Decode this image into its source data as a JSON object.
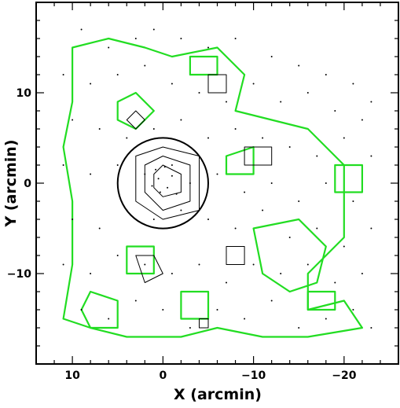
{
  "chart_data": {
    "type": "contour",
    "xlabel": "X (arcmin)",
    "ylabel": "Y (arcmin)",
    "xlim": [
      14,
      -26
    ],
    "ylim": [
      -20,
      20
    ],
    "x_ticks": [
      10,
      0,
      -10,
      -20
    ],
    "y_ticks": [
      10,
      0,
      -10
    ],
    "x_tick_labels": [
      "10",
      "0",
      "−10",
      "−20"
    ],
    "y_tick_labels": [
      "10",
      "0",
      "−10"
    ],
    "grid": false,
    "colors": {
      "green_contours": "#22dd22",
      "black_contours": "#000000",
      "points": "#000000"
    },
    "circle": {
      "center": [
        0,
        0
      ],
      "radius": 5
    },
    "green_contours": [
      [
        [
          -1,
          14
        ],
        [
          -6,
          15
        ],
        [
          -9,
          12
        ],
        [
          -8,
          8
        ],
        [
          -12,
          7
        ],
        [
          -16,
          6
        ],
        [
          -20,
          2
        ],
        [
          -20,
          -6
        ],
        [
          -16,
          -10
        ],
        [
          -16,
          -14
        ],
        [
          -20,
          -13
        ],
        [
          -22,
          -16
        ],
        [
          -16,
          -17
        ],
        [
          -11,
          -17
        ],
        [
          -6,
          -16
        ],
        [
          -2,
          -17
        ],
        [
          4,
          -17
        ],
        [
          8,
          -16
        ],
        [
          11,
          -15
        ],
        [
          10,
          -9
        ],
        [
          10,
          -2
        ],
        [
          11,
          4
        ],
        [
          10,
          9
        ],
        [
          10,
          15
        ],
        [
          6,
          16
        ],
        [
          2,
          15
        ],
        [
          -1,
          14
        ]
      ],
      [
        [
          5,
          9
        ],
        [
          3,
          10
        ],
        [
          1,
          8
        ],
        [
          3,
          6
        ],
        [
          5,
          7
        ],
        [
          5,
          9
        ]
      ],
      [
        [
          -3,
          14
        ],
        [
          -6,
          14
        ],
        [
          -6,
          12
        ],
        [
          -3,
          12
        ],
        [
          -3,
          14
        ]
      ],
      [
        [
          -10,
          -5
        ],
        [
          -15,
          -4
        ],
        [
          -18,
          -7
        ],
        [
          -17,
          -11
        ],
        [
          -14,
          -12
        ],
        [
          -11,
          -10
        ],
        [
          -10,
          -5
        ]
      ],
      [
        [
          -7,
          3
        ],
        [
          -10,
          4
        ],
        [
          -10,
          1
        ],
        [
          -7,
          1
        ],
        [
          -7,
          3
        ]
      ],
      [
        [
          8,
          -12
        ],
        [
          5,
          -13
        ],
        [
          5,
          -16
        ],
        [
          8,
          -16
        ],
        [
          9,
          -14
        ],
        [
          8,
          -12
        ]
      ],
      [
        [
          -2,
          -12
        ],
        [
          -5,
          -12
        ],
        [
          -5,
          -15
        ],
        [
          -2,
          -15
        ],
        [
          -2,
          -12
        ]
      ],
      [
        [
          -16,
          -12
        ],
        [
          -19,
          -12
        ],
        [
          -19,
          -14
        ],
        [
          -16,
          -14
        ],
        [
          -16,
          -12
        ]
      ],
      [
        [
          -19,
          2
        ],
        [
          -22,
          2
        ],
        [
          -22,
          -1
        ],
        [
          -19,
          -1
        ],
        [
          -19,
          2
        ]
      ],
      [
        [
          4,
          -7
        ],
        [
          1,
          -7
        ],
        [
          1,
          -10
        ],
        [
          4,
          -10
        ],
        [
          4,
          -7
        ]
      ]
    ],
    "black_contours": [
      [
        [
          1,
          1
        ],
        [
          0,
          2
        ],
        [
          -2,
          1
        ],
        [
          -2,
          -1
        ],
        [
          0,
          -1.5
        ],
        [
          1,
          -0.5
        ],
        [
          1,
          1
        ]
      ],
      [
        [
          2,
          2
        ],
        [
          0,
          3
        ],
        [
          -3,
          2
        ],
        [
          -3,
          -2
        ],
        [
          0,
          -3
        ],
        [
          2,
          -1
        ],
        [
          2,
          2
        ]
      ],
      [
        [
          3,
          3
        ],
        [
          0,
          4
        ],
        [
          -4,
          3
        ],
        [
          -4,
          -3
        ],
        [
          0,
          -4
        ],
        [
          3,
          -2
        ],
        [
          3,
          3
        ]
      ],
      [
        [
          -9,
          4
        ],
        [
          -12,
          4
        ],
        [
          -12,
          2
        ],
        [
          -9,
          2
        ],
        [
          -9,
          4
        ]
      ],
      [
        [
          -5,
          12
        ],
        [
          -7,
          12
        ],
        [
          -7,
          10
        ],
        [
          -5,
          10
        ],
        [
          -5,
          12
        ]
      ],
      [
        [
          -7,
          -7
        ],
        [
          -9,
          -7
        ],
        [
          -9,
          -9
        ],
        [
          -7,
          -9
        ],
        [
          -7,
          -7
        ]
      ],
      [
        [
          3,
          -8
        ],
        [
          1,
          -8
        ],
        [
          0,
          -10
        ],
        [
          2,
          -11
        ],
        [
          3,
          -8
        ]
      ],
      [
        [
          4,
          7
        ],
        [
          3,
          8
        ],
        [
          2,
          7
        ],
        [
          3,
          6
        ],
        [
          4,
          7
        ]
      ],
      [
        [
          -4,
          -15
        ],
        [
          -5,
          -15
        ],
        [
          -5,
          -16
        ],
        [
          -4,
          -16
        ],
        [
          -4,
          -15
        ]
      ]
    ],
    "points": [
      [
        9,
        17
      ],
      [
        6,
        15
      ],
      [
        3,
        16
      ],
      [
        1,
        17
      ],
      [
        -2,
        16
      ],
      [
        -5,
        15
      ],
      [
        -8,
        16
      ],
      [
        -12,
        14
      ],
      [
        -15,
        13
      ],
      [
        -18,
        12
      ],
      [
        -21,
        11
      ],
      [
        -23,
        9
      ],
      [
        11,
        12
      ],
      [
        8,
        11
      ],
      [
        5,
        12
      ],
      [
        2,
        13
      ],
      [
        -1,
        11
      ],
      [
        -4,
        10
      ],
      [
        -7,
        9
      ],
      [
        -10,
        11
      ],
      [
        -13,
        9
      ],
      [
        -16,
        10
      ],
      [
        -19,
        8
      ],
      [
        -22,
        7
      ],
      [
        10,
        7
      ],
      [
        7,
        6
      ],
      [
        4,
        5
      ],
      [
        1,
        6
      ],
      [
        -2,
        7
      ],
      [
        -5,
        5
      ],
      [
        -8,
        6
      ],
      [
        -11,
        5
      ],
      [
        -14,
        4
      ],
      [
        -17,
        3
      ],
      [
        -20,
        5
      ],
      [
        -23,
        3
      ],
      [
        11,
        2
      ],
      [
        8,
        1
      ],
      [
        5,
        2
      ],
      [
        2,
        1
      ],
      [
        -1,
        2
      ],
      [
        -3,
        0
      ],
      [
        -6,
        1
      ],
      [
        -9,
        -1
      ],
      [
        -12,
        0
      ],
      [
        -15,
        -2
      ],
      [
        -18,
        0
      ],
      [
        -21,
        -2
      ],
      [
        10,
        -4
      ],
      [
        7,
        -5
      ],
      [
        4,
        -3
      ],
      [
        1,
        -4
      ],
      [
        -2,
        -3
      ],
      [
        -5,
        -4
      ],
      [
        -8,
        -5
      ],
      [
        -11,
        -3
      ],
      [
        -14,
        -6
      ],
      [
        -17,
        -5
      ],
      [
        -20,
        -7
      ],
      [
        -23,
        -5
      ],
      [
        11,
        -9
      ],
      [
        8,
        -10
      ],
      [
        5,
        -8
      ],
      [
        2,
        -9
      ],
      [
        -1,
        -10
      ],
      [
        -4,
        -9
      ],
      [
        -7,
        -11
      ],
      [
        -10,
        -9
      ],
      [
        -13,
        -10
      ],
      [
        -16,
        -9
      ],
      [
        -19,
        -11
      ],
      [
        -22,
        -10
      ],
      [
        9,
        -14
      ],
      [
        6,
        -15
      ],
      [
        3,
        -13
      ],
      [
        0,
        -14
      ],
      [
        -3,
        -16
      ],
      [
        -6,
        -14
      ],
      [
        -9,
        -15
      ],
      [
        -12,
        -13
      ],
      [
        -15,
        -16
      ],
      [
        -18,
        -15
      ],
      [
        -21,
        -14
      ],
      [
        -23,
        -16
      ],
      [
        0.5,
        0.5
      ],
      [
        -0.5,
        -0.5
      ],
      [
        0.3,
        -1
      ],
      [
        -1,
        0.8
      ],
      [
        1.2,
        -0.3
      ],
      [
        -1.5,
        -1.2
      ],
      [
        0.8,
        1.5
      ],
      [
        -0.2,
        1.8
      ]
    ]
  }
}
